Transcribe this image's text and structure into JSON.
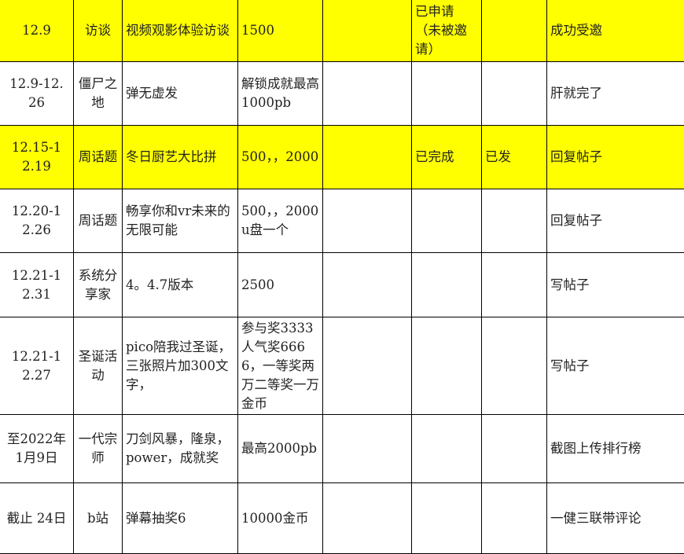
{
  "highlight_color": "#ffff00",
  "rows": [
    {
      "highlight": true,
      "cells": [
        "12.9",
        "访谈",
        "视频观影体验访谈",
        "1500",
        "",
        "已申请（未被邀请）",
        "",
        "成功受邀"
      ]
    },
    {
      "highlight": false,
      "cells": [
        "12.9-12.26",
        "僵尸之地",
        "弹无虚发",
        "解锁成就最高1000pb",
        "",
        "",
        "",
        "肝就完了"
      ]
    },
    {
      "highlight": true,
      "cells": [
        "12.15-12.19",
        "周话题",
        "冬日厨艺大比拼",
        "500，，2000",
        "",
        "已完成",
        "已发",
        "回复帖子"
      ]
    },
    {
      "highlight": false,
      "cells": [
        "12.20-12.26",
        "周话题",
        "畅享你和vr未来的无限可能",
        "500，，2000u盘一个",
        "",
        "",
        "",
        "回复帖子"
      ]
    },
    {
      "highlight": false,
      "cells": [
        "12.21-12.31",
        "系统分享家",
        "4。4.7版本",
        "2500",
        "",
        "",
        "",
        "写帖子"
      ]
    },
    {
      "highlight": false,
      "cells": [
        "12.21-12.27",
        "圣诞活动",
        "pico陪我过圣诞，三张照片加300文字，",
        "参与奖3333人气奖6666，一等奖两万二等奖一万金币",
        "",
        "",
        "",
        "写帖子"
      ]
    },
    {
      "highlight": false,
      "cells": [
        "至2022年1月9日",
        "一代宗师",
        "刀剑风暴，隆泉，power，成就奖",
        "最高2000pb",
        "",
        "",
        "",
        "截图上传排行榜"
      ]
    },
    {
      "highlight": false,
      "cells": [
        "截止 24日",
        "b站",
        "弹幕抽奖6",
        "10000金币",
        "",
        "",
        "",
        "一健三联带评论"
      ]
    }
  ]
}
